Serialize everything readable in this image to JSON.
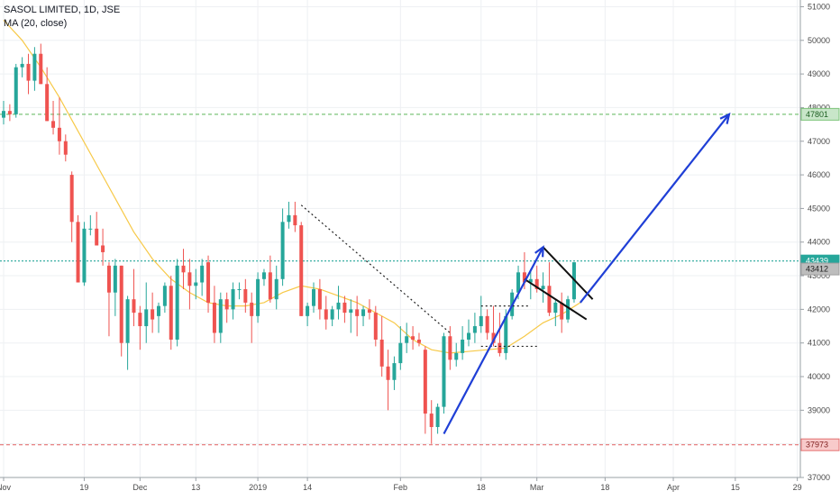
{
  "legend": {
    "title": "SASOL LIMITED, 1D, JSE",
    "indicator": "MA (20, close)"
  },
  "colors": {
    "up": "#26a69a",
    "down": "#ef5350",
    "ma": "#f7c948",
    "resistance": "#7cc47a",
    "support": "#e57373",
    "last": "#26a69a",
    "ma_tag": "#9e9e9e",
    "arrow": "#1f3fd6",
    "flag": "#111111"
  },
  "chart_data": {
    "type": "candlestick",
    "title": "SASOL LIMITED, 1D, JSE",
    "ylim": [
      37000,
      51200
    ],
    "y_ticks": [
      "37000",
      "38000",
      "39000",
      "40000",
      "41000",
      "42000",
      "43000",
      "44000",
      "45000",
      "46000",
      "47000",
      "48000",
      "49000",
      "50000",
      "51000"
    ],
    "x_ticks": [
      {
        "label": "Nov",
        "index": 0
      },
      {
        "label": "19",
        "index": 13
      },
      {
        "label": "Dec",
        "index": 22
      },
      {
        "label": "13",
        "index": 31
      },
      {
        "label": "2019",
        "index": 41
      },
      {
        "label": "14",
        "index": 49
      },
      {
        "label": "Feb",
        "index": 64
      },
      {
        "label": "18",
        "index": 77
      },
      {
        "label": "Mar",
        "index": 86
      },
      {
        "label": "18",
        "index": 97
      },
      {
        "label": "Apr",
        "index": 108
      },
      {
        "label": "15",
        "index": 118
      },
      {
        "label": "29",
        "index": 128
      }
    ],
    "candles": [
      [
        47700,
        48200,
        47500,
        47900
      ],
      [
        47900,
        48100,
        47600,
        47800
      ],
      [
        47800,
        49300,
        47700,
        49200
      ],
      [
        49200,
        49500,
        48900,
        49300
      ],
      [
        49300,
        49600,
        48400,
        48800
      ],
      [
        48800,
        49800,
        48500,
        49600
      ],
      [
        49600,
        49900,
        48700,
        48700
      ],
      [
        48700,
        49200,
        47600,
        47600
      ],
      [
        47600,
        48200,
        47200,
        47400
      ],
      [
        47400,
        48300,
        46600,
        47000
      ],
      [
        47000,
        47200,
        46400,
        46600
      ],
      [
        46000,
        46100,
        44000,
        44600
      ],
      [
        44600,
        44800,
        42800,
        42800
      ],
      [
        42800,
        44600,
        42700,
        44400
      ],
      [
        44400,
        44800,
        44200,
        44400
      ],
      [
        44400,
        44900,
        43900,
        43900
      ],
      [
        43900,
        44400,
        43300,
        43700
      ],
      [
        43300,
        43400,
        41200,
        42500
      ],
      [
        42500,
        43500,
        41800,
        43300
      ],
      [
        43300,
        43300,
        40600,
        41000
      ],
      [
        41000,
        42400,
        40200,
        42300
      ],
      [
        42300,
        43200,
        41500,
        41900
      ],
      [
        41900,
        42100,
        40800,
        41500
      ],
      [
        41500,
        42800,
        41000,
        42000
      ],
      [
        42000,
        42500,
        41300,
        41700
      ],
      [
        41800,
        42200,
        41300,
        42100
      ],
      [
        42100,
        42800,
        41900,
        42700
      ],
      [
        42700,
        43000,
        40800,
        41100
      ],
      [
        41100,
        43500,
        40900,
        43300
      ],
      [
        43300,
        43800,
        42600,
        43100
      ],
      [
        43100,
        43500,
        42000,
        42700
      ],
      [
        42700,
        43200,
        42300,
        42800
      ],
      [
        42800,
        43500,
        42400,
        43300
      ],
      [
        43400,
        43600,
        41900,
        42200
      ],
      [
        42200,
        42700,
        41000,
        41300
      ],
      [
        41300,
        42500,
        41000,
        42300
      ],
      [
        42300,
        42500,
        41600,
        42000
      ],
      [
        42000,
        42800,
        41700,
        42600
      ],
      [
        42600,
        42800,
        42300,
        42600
      ],
      [
        42600,
        42900,
        41900,
        42200
      ],
      [
        42200,
        42500,
        41000,
        41800
      ],
      [
        41800,
        43100,
        41600,
        42900
      ],
      [
        42900,
        43200,
        42700,
        43100
      ],
      [
        43100,
        43600,
        42200,
        42300
      ],
      [
        42300,
        43300,
        42000,
        42900
      ],
      [
        42900,
        45000,
        42700,
        44600
      ],
      [
        44600,
        45200,
        44400,
        44800
      ],
      [
        44800,
        45200,
        44300,
        44500
      ],
      [
        44500,
        44600,
        41800,
        41800
      ],
      [
        41800,
        42200,
        41500,
        42100
      ],
      [
        42100,
        42800,
        41900,
        42600
      ],
      [
        42600,
        42900,
        41700,
        42000
      ],
      [
        42000,
        42400,
        41400,
        41700
      ],
      [
        41700,
        42100,
        41500,
        42000
      ],
      [
        42000,
        42700,
        41700,
        42200
      ],
      [
        42200,
        42400,
        41600,
        41900
      ],
      [
        41900,
        42300,
        41300,
        42000
      ],
      [
        42000,
        42400,
        41200,
        41800
      ],
      [
        41800,
        42100,
        41500,
        42000
      ],
      [
        42000,
        42300,
        41700,
        41900
      ],
      [
        41900,
        42100,
        40900,
        41100
      ],
      [
        41100,
        41800,
        40000,
        40300
      ],
      [
        40300,
        40800,
        39000,
        39900
      ],
      [
        39900,
        40600,
        39600,
        40400
      ],
      [
        40400,
        41500,
        40200,
        41000
      ],
      [
        41000,
        41600,
        40700,
        41200
      ],
      [
        41200,
        41500,
        40800,
        41100
      ],
      [
        41100,
        41300,
        40900,
        41000
      ],
      [
        40800,
        40900,
        38300,
        38900
      ],
      [
        38900,
        39300,
        38000,
        38500
      ],
      [
        38500,
        39200,
        38300,
        39100
      ],
      [
        39100,
        41300,
        38900,
        41200
      ],
      [
        41200,
        41500,
        40200,
        40500
      ],
      [
        40500,
        41000,
        40300,
        40700
      ],
      [
        40700,
        41500,
        40500,
        41100
      ],
      [
        41100,
        41700,
        40900,
        41300
      ],
      [
        41300,
        41900,
        41000,
        41500
      ],
      [
        41500,
        42400,
        41300,
        41800
      ],
      [
        41800,
        42000,
        41100,
        41300
      ],
      [
        41300,
        42100,
        40900,
        41000
      ],
      [
        41000,
        41900,
        40600,
        40700
      ],
      [
        40700,
        42000,
        40500,
        41800
      ],
      [
        41800,
        42600,
        41700,
        42500
      ],
      [
        42500,
        43300,
        42300,
        43100
      ],
      [
        43100,
        43700,
        42600,
        42800
      ],
      [
        42800,
        43200,
        42300,
        42900
      ],
      [
        42900,
        43300,
        42500,
        42600
      ],
      [
        42600,
        43100,
        42200,
        42700
      ],
      [
        42700,
        43400,
        41800,
        41900
      ],
      [
        41900,
        42300,
        41500,
        42200
      ],
      [
        42200,
        42500,
        41300,
        41700
      ],
      [
        41700,
        42400,
        41600,
        42300
      ],
      [
        42300,
        43400,
        42200,
        43400
      ]
    ],
    "ma_points": [
      [
        0,
        50600
      ],
      [
        3,
        50000
      ],
      [
        6,
        49200
      ],
      [
        9,
        48300
      ],
      [
        12,
        47300
      ],
      [
        15,
        46300
      ],
      [
        18,
        45300
      ],
      [
        21,
        44300
      ],
      [
        24,
        43500
      ],
      [
        27,
        42900
      ],
      [
        30,
        42500
      ],
      [
        33,
        42200
      ],
      [
        36,
        42100
      ],
      [
        39,
        42100
      ],
      [
        42,
        42200
      ],
      [
        45,
        42500
      ],
      [
        48,
        42700
      ],
      [
        51,
        42600
      ],
      [
        54,
        42400
      ],
      [
        57,
        42200
      ],
      [
        60,
        41900
      ],
      [
        63,
        41600
      ],
      [
        66,
        41100
      ],
      [
        69,
        40800
      ],
      [
        72,
        40700
      ],
      [
        75,
        40750
      ],
      [
        78,
        40800
      ],
      [
        81,
        40850
      ],
      [
        84,
        41200
      ],
      [
        87,
        41600
      ],
      [
        90,
        41850
      ],
      [
        93,
        42200
      ]
    ],
    "hlines": [
      {
        "value": 47801,
        "label": "47801",
        "role": "resistance"
      },
      {
        "value": 37973,
        "label": "37973",
        "role": "support"
      },
      {
        "value": 43439,
        "label": "43439",
        "role": "last"
      }
    ],
    "ma_value": {
      "value": 43200,
      "label": "43412"
    },
    "annotations": {
      "arrow_up": [
        [
          71,
          38300
        ],
        [
          87,
          43850
        ]
      ],
      "arrow_projection": [
        [
          93,
          42200
        ],
        [
          117,
          47800
        ]
      ],
      "flag_upper": [
        [
          87,
          43850
        ],
        [
          95,
          42300
        ]
      ],
      "flag_lower": [
        [
          84,
          42900
        ],
        [
          94,
          41700
        ]
      ],
      "trend_dotted": [
        [
          48,
          45100
        ],
        [
          72,
          41300
        ]
      ],
      "range_top": [
        [
          77,
          42100
        ],
        [
          85,
          42100
        ]
      ],
      "range_bottom": [
        [
          77,
          40900
        ],
        [
          86,
          40900
        ]
      ]
    }
  }
}
